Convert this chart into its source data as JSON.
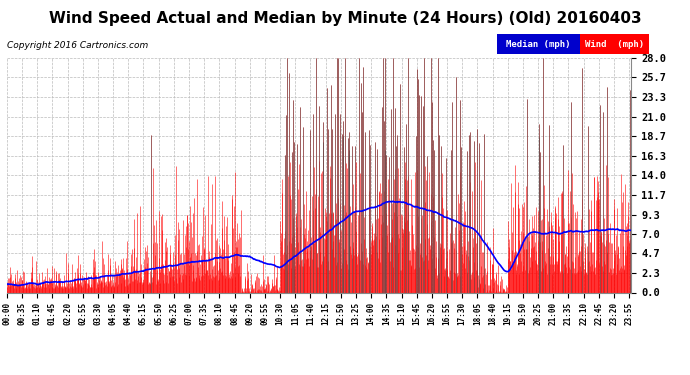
{
  "title": "Wind Speed Actual and Median by Minute (24 Hours) (Old) 20160403",
  "copyright": "Copyright 2016 Cartronics.com",
  "legend_median_label": "Median (mph)",
  "legend_wind_label": "Wind  (mph)",
  "legend_median_bg": "#0000cc",
  "legend_wind_bg": "#ff0000",
  "ylabel_right_ticks": [
    0.0,
    2.3,
    4.7,
    7.0,
    9.3,
    11.7,
    14.0,
    16.3,
    18.7,
    21.0,
    23.3,
    25.7,
    28.0
  ],
  "ymin": 0.0,
  "ymax": 28.0,
  "background_color": "#ffffff",
  "plot_bg": "#ffffff",
  "grid_color": "#bbbbbb",
  "title_fontsize": 11,
  "bar_color": "#ff0000",
  "spike_color": "#555555",
  "median_color": "#0000ff",
  "median_linewidth": 1.2,
  "tick_interval_minutes": 35,
  "total_minutes": 1440
}
